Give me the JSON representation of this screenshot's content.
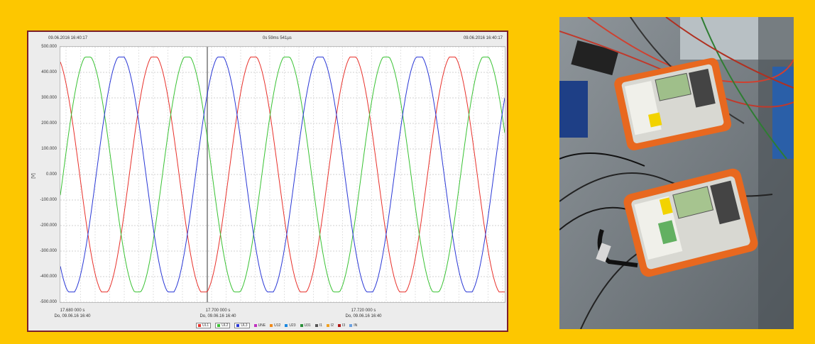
{
  "header": {
    "left_time": "09.06.2016 16:40:17",
    "center_time": "0s 59ms 541µs",
    "right_time": "09.06.2016 16:40:17"
  },
  "yaxis": {
    "unit": "[V]",
    "ticks": [
      "500.000",
      "400.000",
      "300.000",
      "200.000",
      "100.000",
      "0.000",
      "-100.000",
      "-200.000",
      "-300.000",
      "-400.000",
      "-500.000"
    ]
  },
  "xaxis": {
    "ticks": [
      {
        "line1": "17.680 000 s",
        "line2": "Do, 09.06.16 16:40"
      },
      {
        "line1": "17.700 000 s",
        "line2": "Do, 09.06.16 16:40"
      },
      {
        "line1": "17.720 000 s",
        "line2": "Do, 09.06.16 16:40"
      }
    ]
  },
  "legend": [
    {
      "label": "UL1",
      "color": "#e8302a"
    },
    {
      "label": "UL2",
      "color": "#39c233"
    },
    {
      "label": "UL3",
      "color": "#2a38d6"
    },
    {
      "label": "UNE",
      "color": "#c030c0"
    },
    {
      "label": "U12",
      "color": "#f08a1a"
    },
    {
      "label": "U23",
      "color": "#1a88e0"
    },
    {
      "label": "U31",
      "color": "#2a8f3a"
    },
    {
      "label": "I1",
      "color": "#555555"
    },
    {
      "label": "I2",
      "color": "#f0a020"
    },
    {
      "label": "I3",
      "color": "#b01818"
    },
    {
      "label": "IN",
      "color": "#6aa0e0"
    }
  ],
  "chart_data": {
    "type": "line",
    "ylim": [
      -500,
      500
    ],
    "xlabel": "",
    "ylabel": "[V]",
    "amplitude": 460,
    "series": [
      {
        "name": "UL1",
        "color": "#e8302a",
        "phase_deg": 0
      },
      {
        "name": "UL2",
        "color": "#39c233",
        "phase_deg": -120
      },
      {
        "name": "UL3",
        "color": "#2a38d6",
        "phase_deg": 120
      }
    ]
  }
}
